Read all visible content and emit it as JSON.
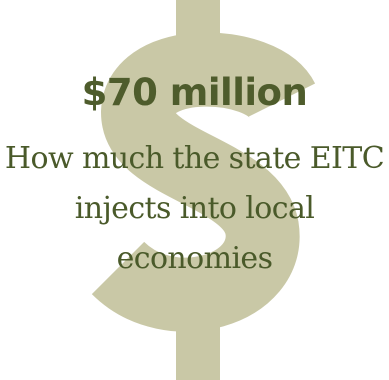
{
  "graphic": {
    "icon": "dollar-sign-icon",
    "icon_color": "#c9c8a6",
    "headline_color": "#4e5c2c",
    "caption_color": "#4a5a2a"
  },
  "stat": {
    "value": "$70 million",
    "description": "How much the state EITC injects into local economies"
  }
}
